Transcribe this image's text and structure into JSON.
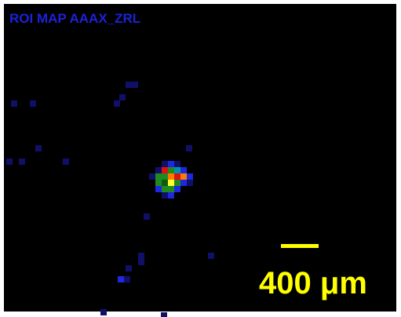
{
  "title": "ROI MAP AAAX_ZRL",
  "scale_bar": {
    "label": "400 μm"
  }
}
